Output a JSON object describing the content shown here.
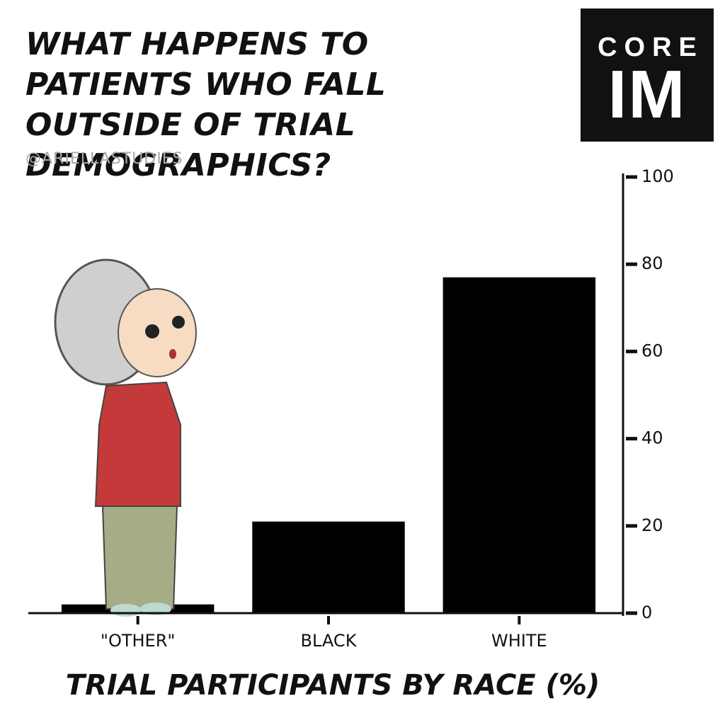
{
  "chart_data": {
    "type": "bar",
    "title": "WHAT HAPPENS TO PATIENTS WHO FALL OUTSIDE OF TRIAL DEMOGRAPHICS?",
    "credit": "@ARIELLASTUDIES",
    "x_label": "TRIAL PARTICIPANTS BY RACE (%)",
    "categories": [
      "\"OTHER\"",
      "BLACK",
      "WHITE"
    ],
    "values": [
      2,
      21,
      77
    ],
    "color": "#000000",
    "ylim": [
      0,
      100
    ],
    "yticks": [
      0,
      20,
      40,
      60,
      80,
      100
    ],
    "grid": false,
    "y_axis_side": "right"
  },
  "logo": {
    "top": "CORE",
    "bottom": "IM"
  }
}
